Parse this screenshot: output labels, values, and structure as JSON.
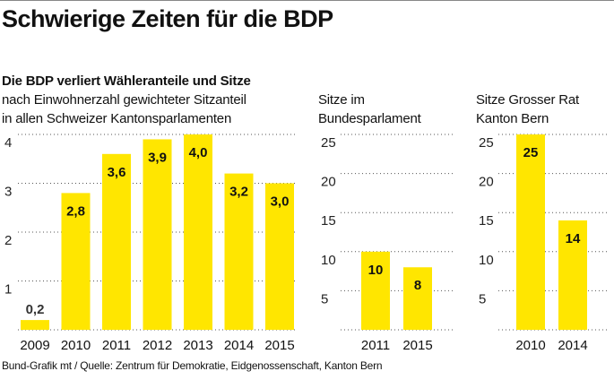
{
  "title": "Schwierige Zeiten für die BDP",
  "subtitle": "Die BDP verliert Wähleranteile und Sitze",
  "source": "Bund-Grafik mt / Quelle: Zentrum für Demokratie, Eidgenossenschaft, Kanton Bern",
  "colors": {
    "bar": "#FFE600",
    "text": "#111111",
    "grid": "#555555"
  },
  "chart_data": [
    {
      "type": "bar",
      "title": "nach Einwohnerzahl gewichteter Sitzanteil in allen Schweizer Kantonsparlamenten",
      "title_lines": [
        "nach Einwohnerzahl gewichteter Sitzanteil",
        "in allen Schweizer Kantonsparlamenten"
      ],
      "categories": [
        "2009",
        "2010",
        "2011",
        "2012",
        "2013",
        "2014",
        "2015"
      ],
      "values": [
        0.2,
        2.8,
        3.6,
        3.9,
        4.0,
        3.2,
        3.0
      ],
      "labels": [
        "0,2",
        "2,8",
        "3,6",
        "3,9",
        "4,0",
        "3,2",
        "3,0"
      ],
      "yticks": [
        1,
        2,
        3,
        4
      ],
      "ylim": [
        0,
        4
      ],
      "xlabel": "",
      "ylabel": "",
      "grid": true
    },
    {
      "type": "bar",
      "title": "Sitze im Bundesparlament",
      "title_lines": [
        "Sitze im",
        "Bundesparlament"
      ],
      "categories": [
        "2011",
        "2015"
      ],
      "values": [
        10,
        8
      ],
      "labels": [
        "10",
        "8"
      ],
      "yticks": [
        5,
        10,
        15,
        20,
        25
      ],
      "ylim": [
        0,
        25
      ],
      "xlabel": "",
      "ylabel": "",
      "grid": true
    },
    {
      "type": "bar",
      "title": "Sitze Grosser Rat Kanton Bern",
      "title_lines": [
        "Sitze Grosser Rat",
        "Kanton Bern"
      ],
      "categories": [
        "2010",
        "2014"
      ],
      "values": [
        25,
        14
      ],
      "labels": [
        "25",
        "14"
      ],
      "yticks": [
        5,
        10,
        15,
        20,
        25
      ],
      "ylim": [
        0,
        25
      ],
      "xlabel": "",
      "ylabel": "",
      "grid": true
    }
  ]
}
